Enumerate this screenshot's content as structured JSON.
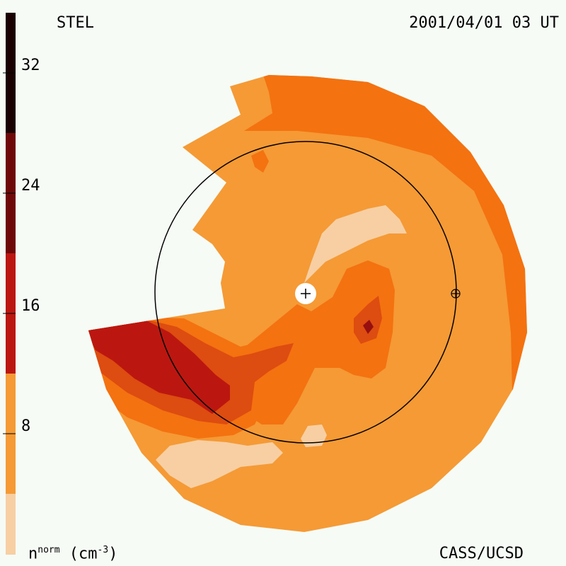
{
  "header": {
    "observatory": "STEL",
    "timestamp": "2001/04/01 03 UT"
  },
  "footer": {
    "credit": "CASS/UCSD",
    "quantity": "n",
    "quantity_sup": "norm",
    "unit_open": " (cm",
    "unit_sup": "-3",
    "unit_close": ")"
  },
  "colorbar": {
    "ticks": [
      "32",
      "24",
      "16",
      "8"
    ],
    "tick_values": [
      32,
      24,
      16,
      8
    ],
    "range": [
      0,
      36
    ],
    "level_colors": [
      "#f7cfa3",
      "#f59a35",
      "#f47210",
      "#dd4c10",
      "#bb1710",
      "#961010",
      "#6e0808",
      "#3c0404",
      "#1a0000"
    ]
  },
  "symbols": {
    "sun": "sun-plus-icon",
    "earth": "earth-circle-plus-icon"
  },
  "colors": {
    "background": "#f6fbf6"
  }
}
